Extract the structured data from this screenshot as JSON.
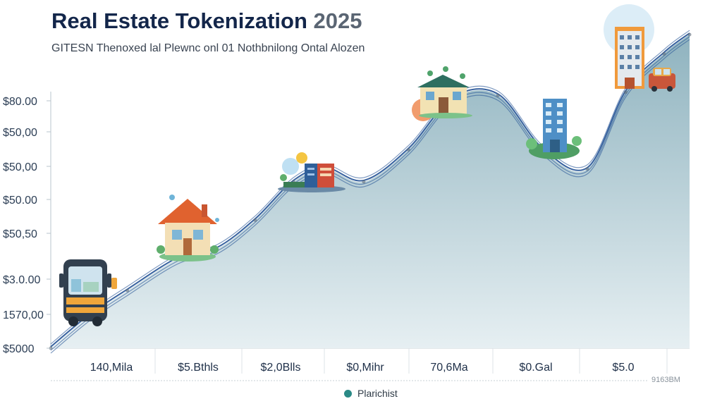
{
  "chart_data": {
    "type": "area",
    "title": "Real Estate Tokenization",
    "title_year": "2025",
    "subtitle": "GITESN Thenoxed lal Plewnc onl 01 Nothbnilong Ontal Alozen",
    "y_tick_labels": [
      "$80.00",
      "$50,00",
      "$50,00",
      "$50.00",
      "$50,50",
      "$3.0.00",
      "1570,00",
      "$5000"
    ],
    "x_tick_labels": [
      "140,Mila",
      "$5.Bthls",
      "$2,0Blls",
      "$0,Mihr",
      "70,6Ma",
      "$0.Gal",
      "$5.0"
    ],
    "corner_label": "9163BM",
    "legend": [
      {
        "label": "Plarichist",
        "color": "#2a8a86"
      }
    ],
    "series_points": [
      [
        0.0,
        0.0
      ],
      [
        0.06,
        0.1
      ],
      [
        0.12,
        0.18
      ],
      [
        0.2,
        0.28
      ],
      [
        0.26,
        0.31
      ],
      [
        0.32,
        0.4
      ],
      [
        0.38,
        0.52
      ],
      [
        0.43,
        0.56
      ],
      [
        0.49,
        0.52
      ],
      [
        0.56,
        0.62
      ],
      [
        0.63,
        0.78
      ],
      [
        0.7,
        0.79
      ],
      [
        0.77,
        0.62
      ],
      [
        0.84,
        0.56
      ],
      [
        0.9,
        0.8
      ],
      [
        0.96,
        0.92
      ],
      [
        1.0,
        0.98
      ]
    ],
    "grid": false,
    "legend_position": "bottom",
    "colors": {
      "fill": "#a9c6cf",
      "line": "#2d5a9a"
    }
  },
  "illustrations": [
    {
      "name": "bus-icon"
    },
    {
      "name": "house-icon"
    },
    {
      "name": "server-icon"
    },
    {
      "name": "villa-icon"
    },
    {
      "name": "tower-icon"
    },
    {
      "name": "hotel-icon"
    },
    {
      "name": "car-icon"
    }
  ]
}
